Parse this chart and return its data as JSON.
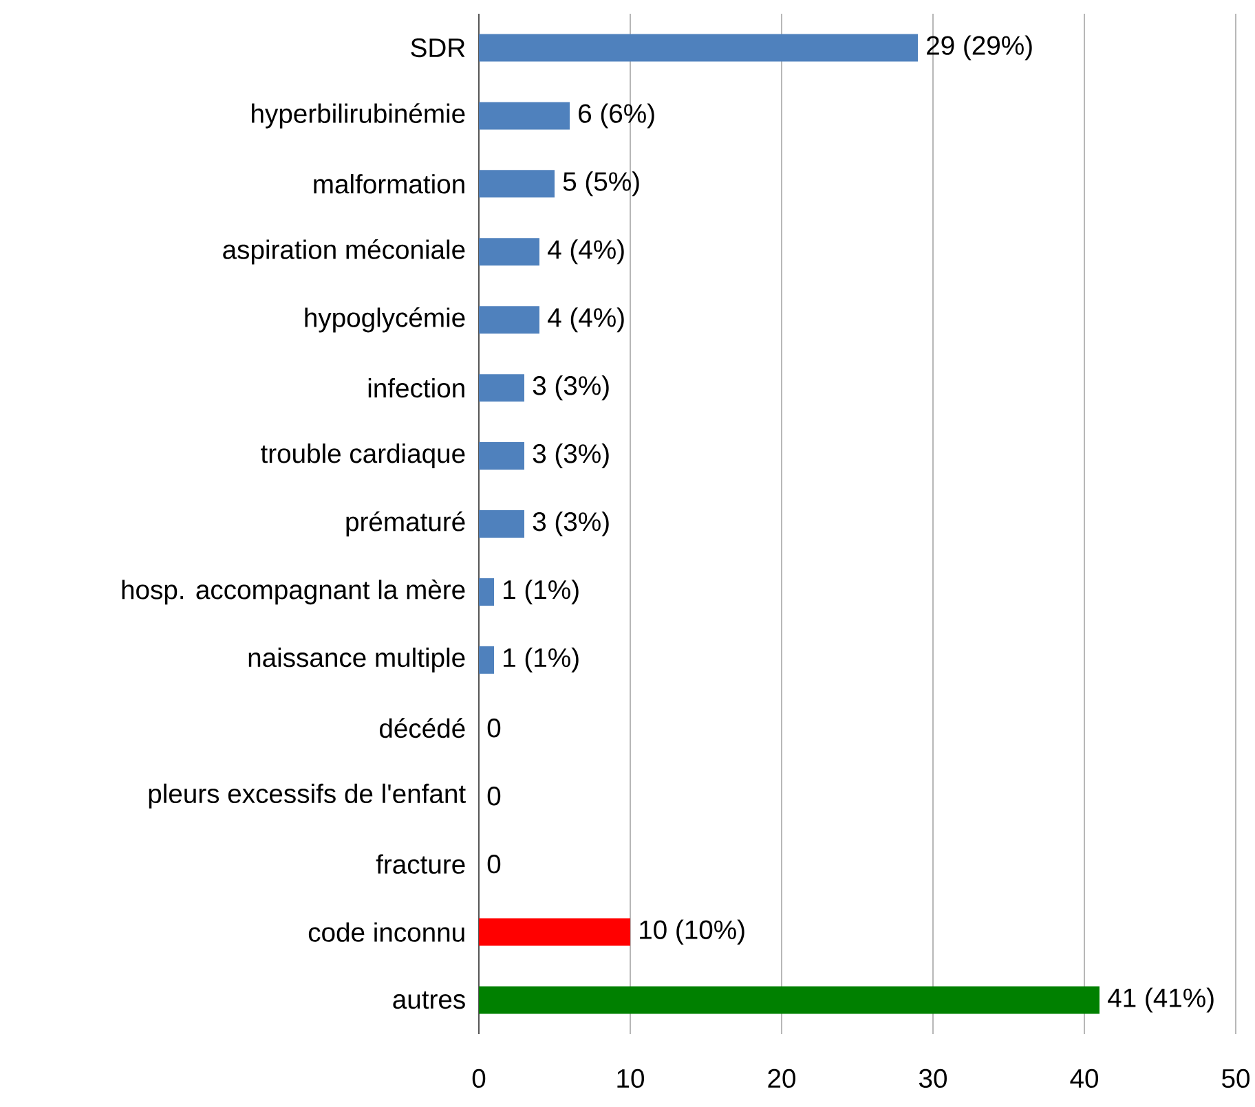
{
  "chart_data": {
    "type": "bar",
    "orientation": "horizontal",
    "categories": [
      "SDR",
      "hyperbilirubinémie",
      "malformation",
      "aspiration méconiale",
      "hypoglycémie",
      "infection",
      "trouble cardiaque",
      "prématuré",
      "hosp. accompagnant la mère",
      "naissance multiple",
      "décédé",
      "pleurs excessifs de l'enfant",
      "fracture",
      "code inconnu",
      "autres"
    ],
    "values": [
      29,
      6,
      5,
      4,
      4,
      3,
      3,
      3,
      1,
      1,
      0,
      0,
      0,
      10,
      41
    ],
    "colors": [
      "#4f81bd",
      "#4f81bd",
      "#4f81bd",
      "#4f81bd",
      "#4f81bd",
      "#4f81bd",
      "#4f81bd",
      "#4f81bd",
      "#4f81bd",
      "#4f81bd",
      "#4f81bd",
      "#4f81bd",
      "#4f81bd",
      "#ff0000",
      "#008000"
    ],
    "value_labels": [
      "29 (29%)",
      "6 (6%)",
      "5 (5%)",
      "4 (4%)",
      "4 (4%)",
      "3 (3%)",
      "3 (3%)",
      "3 (3%)",
      "1 (1%)",
      "1 (1%)",
      "0",
      "0",
      "0",
      "10 (10%)",
      "41 (41%)"
    ],
    "xlim": [
      0,
      50
    ],
    "xticks": [
      0,
      10,
      20,
      30,
      40,
      50
    ],
    "grid": "x"
  }
}
